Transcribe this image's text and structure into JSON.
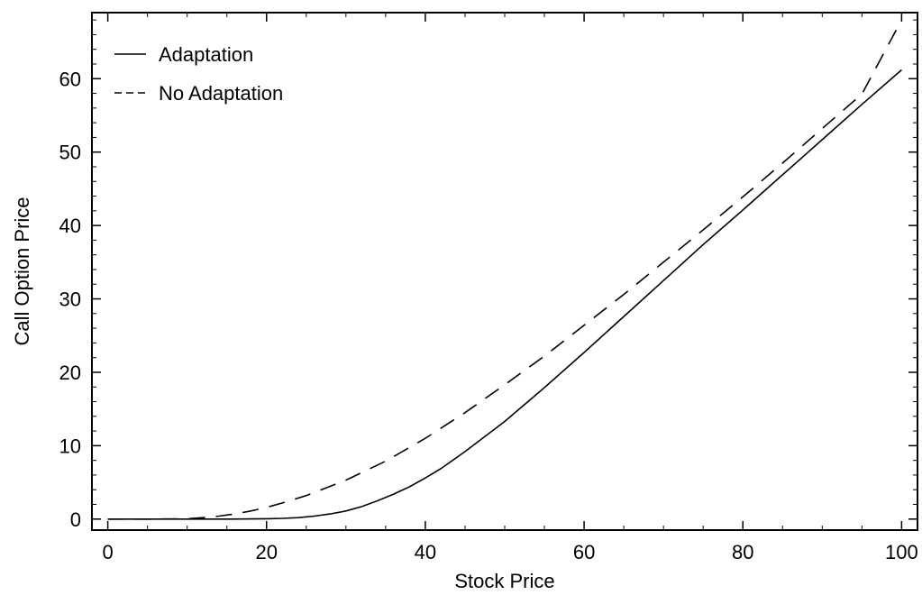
{
  "chart_data": {
    "type": "line",
    "title": "",
    "xlabel": "Stock Price",
    "ylabel": "Call Option Price",
    "xlim": [
      -2,
      102
    ],
    "ylim": [
      -1.5,
      69
    ],
    "xticks": [
      0,
      20,
      40,
      60,
      80,
      100
    ],
    "yticks": [
      0,
      10,
      20,
      30,
      40,
      50,
      60
    ],
    "grid": false,
    "legend_position": "top-left",
    "series": [
      {
        "name": "Adaptation",
        "style": "solid",
        "color": "#000000",
        "x": [
          0,
          5,
          10,
          15,
          20,
          22,
          24,
          26,
          28,
          30,
          32,
          34,
          36,
          38,
          40,
          42,
          45,
          50,
          55,
          60,
          65,
          70,
          75,
          80,
          85,
          90,
          95,
          100
        ],
        "y": [
          0,
          0,
          0,
          0,
          0.05,
          0.1,
          0.2,
          0.4,
          0.7,
          1.1,
          1.7,
          2.5,
          3.4,
          4.4,
          5.6,
          6.9,
          9.2,
          13.3,
          17.9,
          22.7,
          27.6,
          32.5,
          37.4,
          42.1,
          46.9,
          51.7,
          56.5,
          61.2
        ]
      },
      {
        "name": "No Adaptation",
        "style": "dashed",
        "color": "#000000",
        "x": [
          0,
          5,
          10,
          12,
          14,
          16,
          18,
          20,
          22,
          25,
          30,
          35,
          40,
          45,
          50,
          55,
          60,
          65,
          70,
          75,
          80,
          85,
          90,
          95,
          100
        ],
        "y": [
          0,
          0,
          0.05,
          0.2,
          0.4,
          0.7,
          1.1,
          1.6,
          2.2,
          3.2,
          5.3,
          7.9,
          11.0,
          14.5,
          18.3,
          22.2,
          26.4,
          30.6,
          35.0,
          39.4,
          43.9,
          48.5,
          53.2,
          57.9,
          68.0
        ]
      }
    ]
  }
}
